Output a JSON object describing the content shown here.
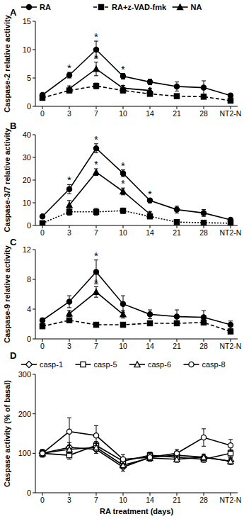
{
  "chart_data": [
    {
      "type": "line",
      "title": "A",
      "y_label": "Caspase-2 relative activity",
      "legend": "top",
      "categories": [
        "0",
        "3",
        "7",
        "10",
        "14",
        "21",
        "28",
        "NT2-N"
      ],
      "ylim": [
        0,
        15
      ],
      "yticks": [
        0,
        5,
        10,
        15
      ],
      "series": [
        {
          "name": "RA",
          "color": "#000000",
          "marker": "circle",
          "line_style": "solid",
          "values": [
            2,
            5.5,
            10,
            5.3,
            4.3,
            3.5,
            3.3,
            1.9
          ],
          "errors": [
            0.3,
            0.5,
            1.5,
            0.5,
            0.5,
            0.8,
            1.2,
            0.4
          ]
        },
        {
          "name": "RA+z-VAD-fmk",
          "color": "#000000",
          "marker": "square",
          "line_style": "dashed",
          "values": [
            1.5,
            2.8,
            3.6,
            2.8,
            2.2,
            1.8,
            1.7,
            1
          ],
          "errors": [
            0.3,
            0.4,
            0.5,
            0.4,
            0.3,
            0.3,
            0.3,
            0.2
          ]
        },
        {
          "name": "NA",
          "color": "#000000",
          "marker": "triangle",
          "line_style": "solid",
          "values": [
            null,
            3.1,
            6.6,
            3.2,
            2.8,
            null,
            null,
            null
          ],
          "errors": [
            null,
            0.5,
            1.2,
            0.5,
            0.4,
            null,
            null,
            null
          ]
        }
      ],
      "annotations": [
        {
          "text": "*",
          "series": 0,
          "index": 1
        },
        {
          "text": "*",
          "series": 0,
          "index": 2
        },
        {
          "text": "*",
          "series": 0,
          "index": 3
        },
        {
          "text": "*",
          "series": 2,
          "index": 2
        }
      ]
    },
    {
      "type": "line",
      "title": "B",
      "y_label": "Caspase-3/7 relative activity",
      "categories": [
        "0",
        "3",
        "7",
        "10",
        "14",
        "21",
        "28",
        "NT2-N"
      ],
      "ylim": [
        0,
        40
      ],
      "yticks": [
        0,
        10,
        20,
        30,
        40
      ],
      "series": [
        {
          "color": "#000000",
          "marker": "circle",
          "line_style": "solid",
          "values": [
            4,
            16,
            34,
            23,
            11,
            7,
            5.5,
            2.5
          ],
          "errors": [
            0.5,
            2,
            2,
            1.5,
            1,
            1.5,
            1.5,
            0.5
          ]
        },
        {
          "color": "#000000",
          "marker": "square",
          "line_style": "dotted",
          "values": [
            1,
            6,
            6,
            6.5,
            4,
            1.5,
            1.2,
            1
          ],
          "errors": [
            0.3,
            1.5,
            1.5,
            1.2,
            0.8,
            0.4,
            0.3,
            0.2
          ]
        },
        {
          "color": "#000000",
          "marker": "triangle",
          "line_style": "solid",
          "values": [
            null,
            9,
            23.5,
            15,
            5,
            null,
            null,
            null
          ],
          "errors": [
            null,
            2,
            1.5,
            1.5,
            1,
            null,
            null,
            null
          ]
        }
      ],
      "annotations": [
        {
          "text": "*",
          "series": 0,
          "index": 1
        },
        {
          "text": "*",
          "series": 0,
          "index": 2
        },
        {
          "text": "*",
          "series": 0,
          "index": 3
        },
        {
          "text": "*",
          "series": 0,
          "index": 4
        },
        {
          "text": "*",
          "series": 2,
          "index": 2
        },
        {
          "text": "*",
          "series": 2,
          "index": 3
        }
      ]
    },
    {
      "type": "line",
      "title": "C",
      "y_label": "Caspase-9 relative activity",
      "categories": [
        "0",
        "3",
        "7",
        "10",
        "14",
        "21",
        "28",
        "NT2-N"
      ],
      "ylim": [
        0,
        12
      ],
      "yticks": [
        0,
        4,
        8,
        12
      ],
      "series": [
        {
          "color": "#000000",
          "marker": "circle",
          "line_style": "solid",
          "values": [
            2.5,
            5,
            9,
            4.7,
            3.3,
            3,
            2.9,
            1.9
          ],
          "errors": [
            0.3,
            0.8,
            1.6,
            1.1,
            0.6,
            0.9,
            0.9,
            0.5
          ]
        },
        {
          "color": "#000000",
          "marker": "square",
          "line_style": "dashed",
          "values": [
            1.7,
            2.5,
            1.9,
            1.9,
            2.1,
            2.1,
            2.2,
            1
          ],
          "errors": [
            0.2,
            0.3,
            0.2,
            0.2,
            0.2,
            0.2,
            0.3,
            0.2
          ]
        },
        {
          "color": "#000000",
          "marker": "triangle",
          "line_style": "solid",
          "values": [
            null,
            3.4,
            6.3,
            3.3,
            null,
            null,
            null,
            null
          ],
          "errors": [
            null,
            0.4,
            0.7,
            0.5,
            null,
            null,
            null,
            null
          ]
        }
      ],
      "annotations": [
        {
          "text": "*",
          "series": 0,
          "index": 2
        },
        {
          "text": "*",
          "series": 2,
          "index": 2
        }
      ]
    },
    {
      "type": "line",
      "title": "D",
      "y_label": "Caspase activity (% of basal)",
      "x_label": "RA treatment (days)",
      "legend": "top",
      "categories": [
        "0",
        "3",
        "7",
        "10",
        "14",
        "21",
        "28",
        "NT2-N"
      ],
      "ylim": [
        0,
        300
      ],
      "yticks": [
        0,
        100,
        200,
        300
      ],
      "series": [
        {
          "name": "casp-1",
          "color": "#000000",
          "marker": "open-diamond",
          "line_style": "solid",
          "values": [
            100,
            115,
            110,
            65,
            90,
            95,
            90,
            80
          ],
          "errors": [
            8,
            12,
            10,
            10,
            8,
            8,
            8,
            8
          ]
        },
        {
          "name": "casp-5",
          "color": "#000000",
          "marker": "open-square",
          "line_style": "solid",
          "values": [
            100,
            95,
            120,
            80,
            95,
            90,
            85,
            100
          ],
          "errors": [
            8,
            10,
            10,
            8,
            8,
            8,
            8,
            10
          ]
        },
        {
          "name": "casp-6",
          "color": "#000000",
          "marker": "open-triangle",
          "line_style": "solid",
          "values": [
            100,
            110,
            115,
            70,
            88,
            85,
            90,
            80
          ],
          "errors": [
            8,
            10,
            10,
            8,
            8,
            8,
            8,
            8
          ]
        },
        {
          "name": "casp-8",
          "color": "#000000",
          "marker": "open-circle",
          "line_style": "solid",
          "values": [
            100,
            155,
            145,
            85,
            90,
            100,
            140,
            120
          ],
          "errors": [
            10,
            35,
            25,
            12,
            10,
            10,
            22,
            15
          ]
        }
      ]
    }
  ]
}
